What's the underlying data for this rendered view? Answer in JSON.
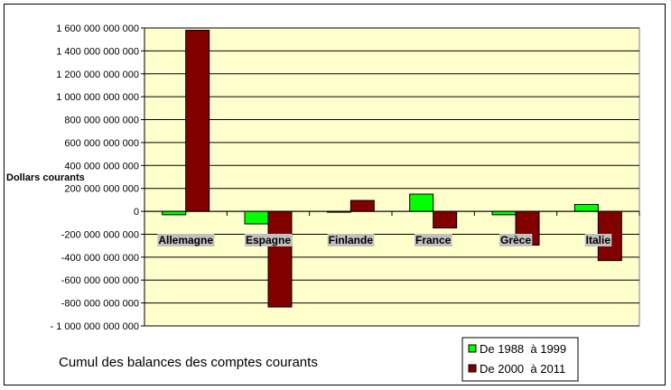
{
  "chart_data": {
    "type": "bar",
    "title": "Cumul des balances des comptes courants",
    "ylabel": "Dollars courants",
    "xlabel": "",
    "categories": [
      "Allemagne",
      "Espagne",
      "Finlande",
      "France",
      "Grèce",
      "Italie"
    ],
    "series": [
      {
        "name": "De 1988  à 1999",
        "color": "#00ff00",
        "values": [
          -30000000000,
          -110000000000,
          -5000000000,
          150000000000,
          -30000000000,
          60000000000
        ]
      },
      {
        "name": "De 2000  à 2011",
        "color": "#800000",
        "values": [
          1580000000000,
          -835000000000,
          95000000000,
          -145000000000,
          -295000000000,
          -430000000000
        ]
      }
    ],
    "ylim": [
      -1000000000000,
      1600000000000
    ],
    "yticks": [
      1600000000000,
      1400000000000,
      1200000000000,
      1000000000000,
      800000000000,
      600000000000,
      400000000000,
      200000000000,
      0,
      -200000000000,
      -400000000000,
      -600000000000,
      -800000000000,
      -1000000000000
    ],
    "ytick_labels": [
      "1 600 000 000 000",
      "1 400 000 000 000",
      "1 200 000 000 000",
      "1 000 000 000 000",
      "800 000 000 000",
      "600 000 000 000",
      "400 000 000 000",
      "200 000 000 000",
      "0",
      "-200 000 000 000",
      "-400 000 000 000",
      "-600 000 000 000",
      "-800 000 000 000",
      "- 1 000 000 000 000"
    ],
    "grid": true,
    "plot_background": "#ffffcc",
    "category_label_background": "#c0c0c0",
    "legend_position": "bottom-right"
  }
}
